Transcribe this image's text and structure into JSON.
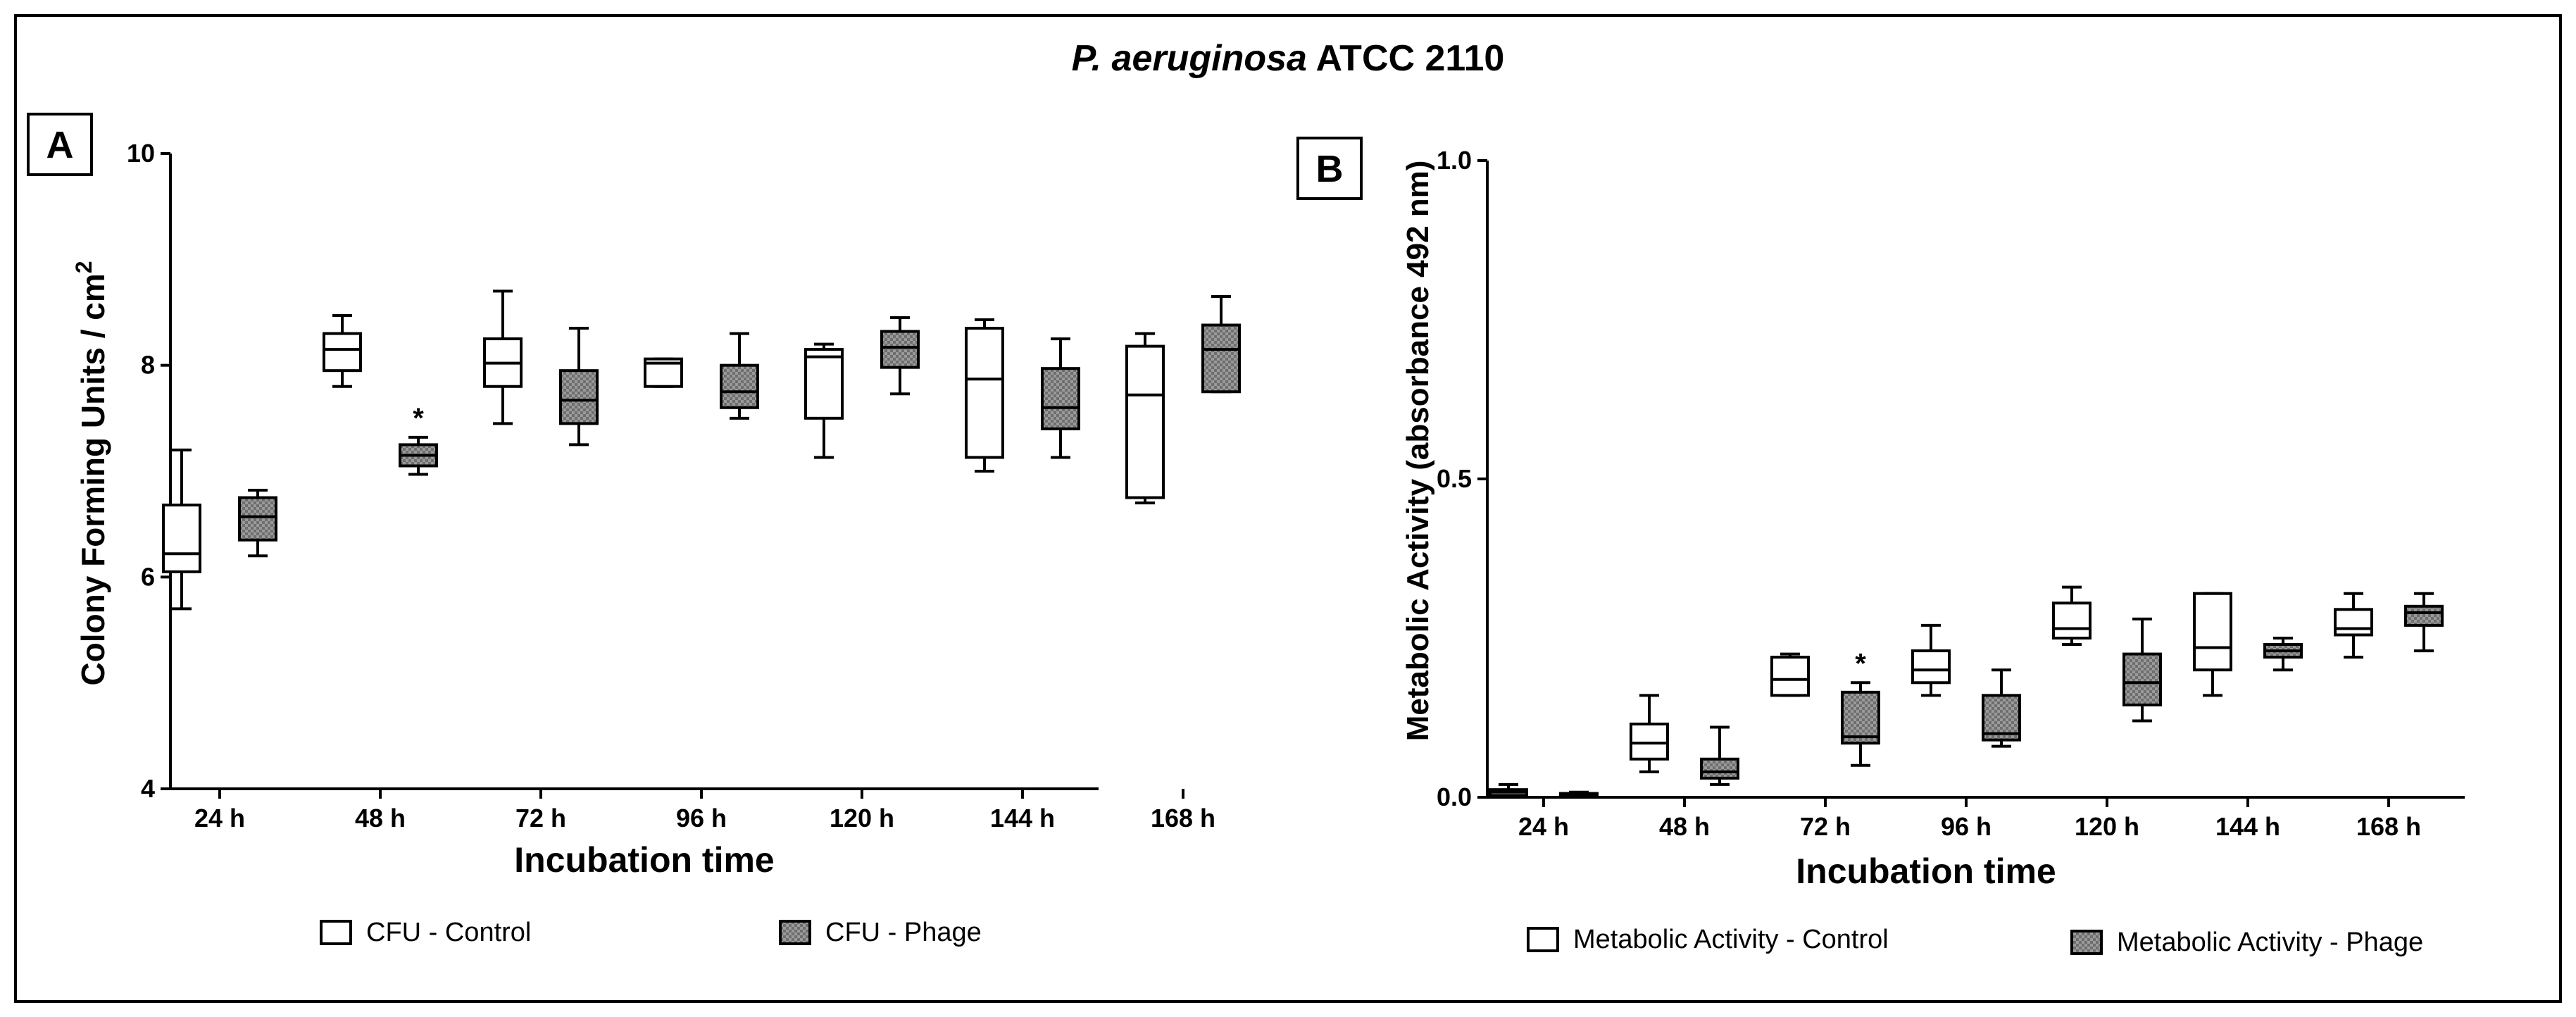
{
  "figure": {
    "title_italic": "P. aeruginosa",
    "title_rest": " ATCC 2110"
  },
  "legend_a": {
    "control": "CFU - Control",
    "phage": "CFU - Phage"
  },
  "legend_b": {
    "control": "Metabolic Activity - Control",
    "phage": "Metabolic Activity - Phage"
  },
  "colors": {
    "control_fill": "#ffffff",
    "phage_fill": "#9a9a9a",
    "axis": "#000000"
  },
  "chart_data": [
    {
      "panel": "A",
      "type": "box",
      "xlabel": "Incubation time",
      "ylabel": "Colony Forming Units / cm",
      "ylabel_sup": "2",
      "ylim": [
        4,
        10
      ],
      "yticks": [
        4,
        6,
        8,
        10
      ],
      "categories": [
        "24 h",
        "48 h",
        "72 h",
        "96 h",
        "120 h",
        "144 h",
        "168 h"
      ],
      "series": [
        {
          "name": "CFU - Control",
          "boxes": [
            {
              "min": 5.7,
              "q1": 6.05,
              "median": 6.22,
              "q3": 6.68,
              "max": 7.2
            },
            {
              "min": 7.8,
              "q1": 7.95,
              "median": 8.15,
              "q3": 8.3,
              "max": 8.47
            },
            {
              "min": 7.45,
              "q1": 7.8,
              "median": 8.02,
              "q3": 8.25,
              "max": 8.7
            },
            {
              "min": 7.8,
              "q1": 7.8,
              "median": 8.02,
              "q3": 8.06,
              "max": 8.06
            },
            {
              "min": 7.13,
              "q1": 7.5,
              "median": 8.08,
              "q3": 8.15,
              "max": 8.2
            },
            {
              "min": 7.0,
              "q1": 7.13,
              "median": 7.87,
              "q3": 8.35,
              "max": 8.43
            },
            {
              "min": 6.7,
              "q1": 6.75,
              "median": 7.72,
              "q3": 8.18,
              "max": 8.3
            }
          ]
        },
        {
          "name": "CFU - Phage",
          "boxes": [
            {
              "min": 6.2,
              "q1": 6.35,
              "median": 6.57,
              "q3": 6.75,
              "max": 6.82
            },
            {
              "min": 6.97,
              "q1": 7.05,
              "median": 7.15,
              "q3": 7.25,
              "max": 7.32
            },
            {
              "min": 7.25,
              "q1": 7.45,
              "median": 7.67,
              "q3": 7.95,
              "max": 8.35
            },
            {
              "min": 7.5,
              "q1": 7.6,
              "median": 7.75,
              "q3": 8.0,
              "max": 8.3
            },
            {
              "min": 7.73,
              "q1": 7.98,
              "median": 8.17,
              "q3": 8.32,
              "max": 8.45
            },
            {
              "min": 7.13,
              "q1": 7.4,
              "median": 7.6,
              "q3": 7.97,
              "max": 8.25
            },
            {
              "min": 7.75,
              "q1": 7.75,
              "median": 8.15,
              "q3": 8.38,
              "max": 8.65
            }
          ]
        }
      ],
      "annotations": [
        {
          "text": "*",
          "category": "48 h",
          "series": "CFU - Phage"
        }
      ]
    },
    {
      "panel": "B",
      "type": "box",
      "xlabel": "Incubation time",
      "ylabel": "Metabolic Activity (absorbance 492 nm)",
      "ylim": [
        0.0,
        1.0
      ],
      "yticks": [
        0.0,
        0.5,
        1.0
      ],
      "ytick_labels": [
        "0.0",
        "0.5",
        "1.0"
      ],
      "categories": [
        "24 h",
        "48 h",
        "72 h",
        "96 h",
        "120 h",
        "144 h",
        "168 h"
      ],
      "series": [
        {
          "name": "Metabolic Activity - Control",
          "boxes": [
            {
              "min": 0.0,
              "q1": 0.003,
              "median": 0.008,
              "q3": 0.012,
              "max": 0.02
            },
            {
              "min": 0.04,
              "q1": 0.06,
              "median": 0.085,
              "q3": 0.115,
              "max": 0.16
            },
            {
              "min": 0.16,
              "q1": 0.16,
              "median": 0.185,
              "q3": 0.22,
              "max": 0.225
            },
            {
              "min": 0.16,
              "q1": 0.18,
              "median": 0.2,
              "q3": 0.23,
              "max": 0.27
            },
            {
              "min": 0.24,
              "q1": 0.25,
              "median": 0.265,
              "q3": 0.305,
              "max": 0.33
            },
            {
              "min": 0.16,
              "q1": 0.2,
              "median": 0.235,
              "q3": 0.32,
              "max": 0.32
            },
            {
              "min": 0.22,
              "q1": 0.255,
              "median": 0.265,
              "q3": 0.295,
              "max": 0.32
            }
          ]
        },
        {
          "name": "Metabolic Activity - Phage",
          "boxes": [
            {
              "min": 0.0,
              "q1": 0.002,
              "median": 0.004,
              "q3": 0.006,
              "max": 0.008
            },
            {
              "min": 0.02,
              "q1": 0.03,
              "median": 0.04,
              "q3": 0.06,
              "max": 0.11
            },
            {
              "min": 0.05,
              "q1": 0.085,
              "median": 0.095,
              "q3": 0.165,
              "max": 0.18
            },
            {
              "min": 0.08,
              "q1": 0.09,
              "median": 0.1,
              "q3": 0.16,
              "max": 0.2
            },
            {
              "min": 0.12,
              "q1": 0.145,
              "median": 0.18,
              "q3": 0.225,
              "max": 0.28
            },
            {
              "min": 0.2,
              "q1": 0.22,
              "median": 0.23,
              "q3": 0.24,
              "max": 0.25
            },
            {
              "min": 0.23,
              "q1": 0.27,
              "median": 0.29,
              "q3": 0.3,
              "max": 0.32
            }
          ]
        }
      ],
      "annotations": [
        {
          "text": "*",
          "category": "72 h",
          "series": "Metabolic Activity - Phage"
        }
      ]
    }
  ]
}
